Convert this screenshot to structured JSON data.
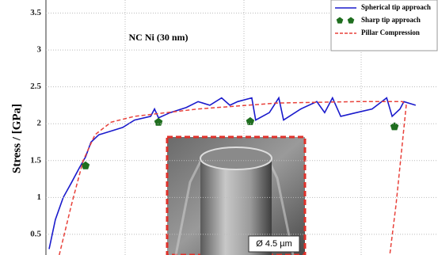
{
  "chart_data": {
    "type": "line",
    "y_label": "Stress / [GPa]",
    "annotation": "NC Ni (30 nm)",
    "inset_label": "Ø 4.5 µm",
    "xlim": [
      0,
      100
    ],
    "ylim": [
      0.22,
      3.5
    ],
    "yticks": [
      0.5,
      1.0,
      1.5,
      2.0,
      2.5,
      3.0,
      3.5
    ],
    "grid": true,
    "legend": "upper right",
    "series": [
      {
        "name": "Spherical tip approach",
        "color": "#1a1acc",
        "style": "solid",
        "x": [
          0.8,
          2.4,
          4.4,
          6.5,
          8.5,
          10.1,
          11.5,
          13.5,
          16.6,
          19.6,
          22.6,
          26.7,
          27.7,
          28.7,
          31.7,
          35.8,
          38.8,
          41.8,
          44.8,
          46.9,
          48.9,
          52.5,
          53.5,
          57,
          59.4,
          60.6,
          65,
          69.1,
          71.1,
          73.1,
          75.2,
          79.2,
          83.2,
          86.9,
          88.3,
          90.3,
          91.3,
          94.3
        ],
        "values": [
          0.3,
          0.7,
          1.0,
          1.2,
          1.4,
          1.55,
          1.75,
          1.85,
          1.9,
          1.95,
          2.05,
          2.1,
          2.2,
          2.08,
          2.15,
          2.22,
          2.3,
          2.25,
          2.35,
          2.25,
          2.3,
          2.35,
          2.05,
          2.15,
          2.35,
          2.05,
          2.2,
          2.3,
          2.15,
          2.35,
          2.1,
          2.15,
          2.2,
          2.35,
          2.1,
          2.2,
          2.3,
          2.25
        ]
      },
      {
        "name": "Sharp tip approach",
        "color": "#1f6e1f",
        "style": "markers",
        "x": [
          10.1,
          28.7,
          52.1,
          88.9
        ],
        "values": [
          1.43,
          2.02,
          2.03,
          1.96
        ]
      },
      {
        "name": "Pillar Compression",
        "color": "#e8413a",
        "style": "dashed",
        "x": [
          3.4,
          6.5,
          9.5,
          12.5,
          16.6,
          22.6,
          38.8,
          59,
          79.2,
          90.9,
          91.9,
          89.3,
          87.7
        ],
        "values": [
          0.22,
          0.9,
          1.5,
          1.85,
          2.02,
          2.1,
          2.2,
          2.28,
          2.3,
          2.3,
          2.25,
          0.9,
          0.22
        ]
      }
    ]
  }
}
